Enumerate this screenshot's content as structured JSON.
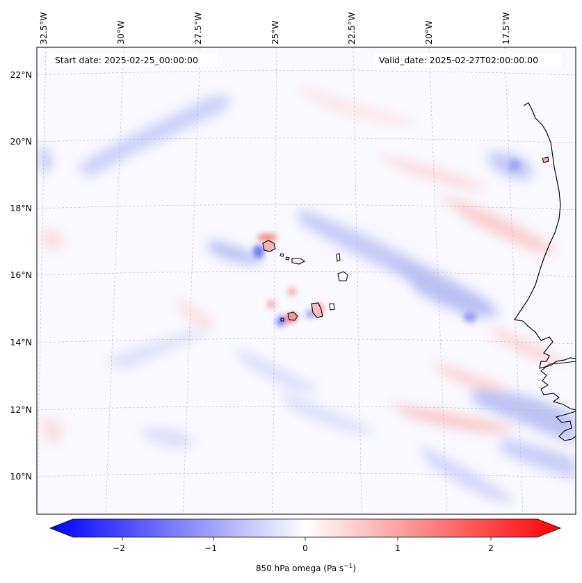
{
  "map": {
    "start_date_label": "Start date: 2025-02-25_00:00:00",
    "valid_date_label": "Valid_date: 2025-02-27T02:00:00.00",
    "lon_labels": [
      "32.5°W",
      "30°W",
      "27.5°W",
      "25°W",
      "22.5°W",
      "20°W",
      "17.5°W"
    ],
    "lat_labels": [
      "22°N",
      "20°N",
      "18°N",
      "16°N",
      "14°N",
      "12°N",
      "10°N"
    ],
    "features": [
      "Cape Verde islands outline",
      "West African coastline"
    ]
  },
  "colorbar": {
    "label": "850 hPa omega (Pa s",
    "label_sup": "−1",
    "label_end": ")",
    "ticks": [
      "−2",
      "−1",
      "0",
      "1",
      "2"
    ],
    "min": -2.7,
    "max": 2.7,
    "colors": {
      "negative": "#0000ff",
      "neutral": "#ffffff",
      "positive": "#ff0000"
    }
  }
}
